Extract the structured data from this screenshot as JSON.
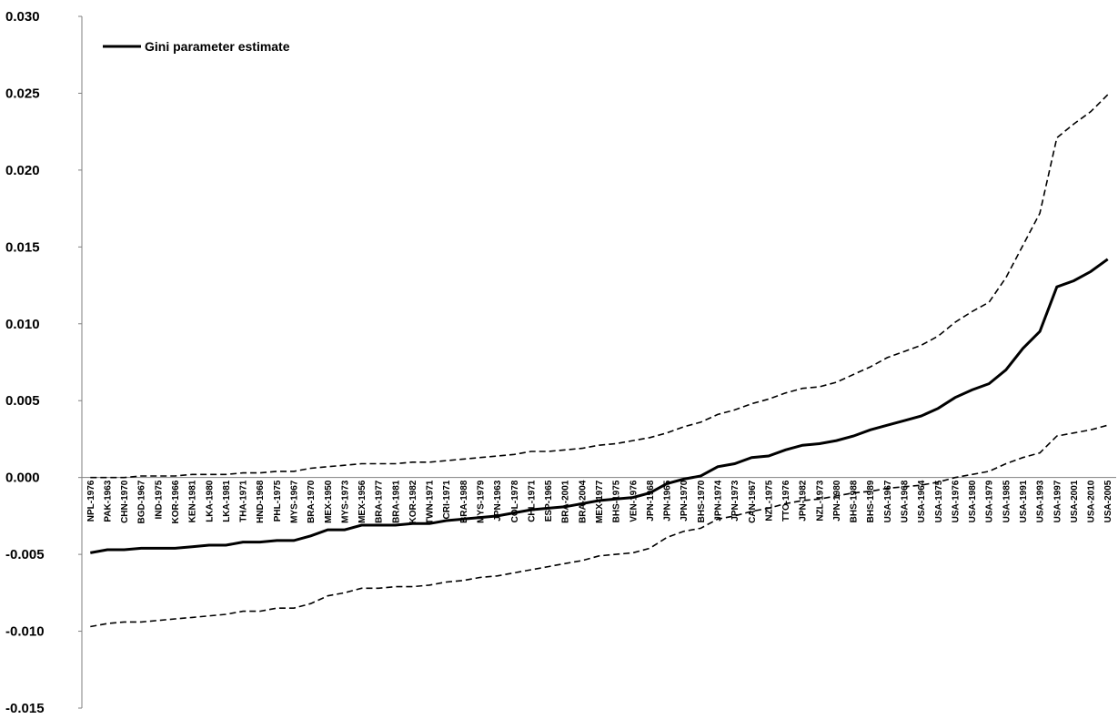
{
  "chart_data": {
    "type": "line",
    "title": "",
    "xlabel": "",
    "ylabel": "",
    "ylim": [
      -0.015,
      0.03
    ],
    "y_ticks": [
      "0.030",
      "0.025",
      "0.020",
      "0.015",
      "0.010",
      "0.005",
      "0.000",
      "-0.005",
      "-0.010",
      "-0.015"
    ],
    "grid": false,
    "legend_position": "top-left",
    "x_labels": [
      "NPL-1976",
      "PAK-1963",
      "CHN-1970",
      "BGD-1967",
      "IND-1975",
      "KOR-1966",
      "KEN-1981",
      "LKA-1980",
      "LKA-1981",
      "THA-1971",
      "HND-1968",
      "PHL-1975",
      "MYS-1967",
      "BRA-1970",
      "MEX-1950",
      "MYS-1973",
      "MEX-1956",
      "BRA-1977",
      "BRA-1981",
      "KOR-1982",
      "TWN-1971",
      "CRI-1971",
      "BRA-1988",
      "MYS-1979",
      "JPN-1963",
      "COL-1978",
      "CHL-1971",
      "ESP-1965",
      "BRA-2001",
      "BRA-2004",
      "MEX-1977",
      "BHS-1975",
      "VEN-1976",
      "JPN-1968",
      "JPN-1965",
      "JPN-1970",
      "BHS-1970",
      "JPN-1974",
      "JPN-1973",
      "CAN-1967",
      "NZL-1975",
      "TTO-1976",
      "JPN-1982",
      "NZL-1973",
      "JPN-1980",
      "BHS-1988",
      "BHS-1989",
      "USA-1967",
      "USA-1968",
      "USA-1964",
      "USA-1975",
      "USA-1976",
      "USA-1980",
      "USA-1979",
      "USA-1985",
      "USA-1991",
      "USA-1993",
      "USA-1997",
      "USA-2001",
      "USA-2010",
      "USA-2005"
    ],
    "series": [
      {
        "name": "Gini parameter estimate",
        "style": "solid",
        "color": "#000000",
        "values": [
          -0.0049,
          -0.0047,
          -0.0047,
          -0.0046,
          -0.0046,
          -0.0046,
          -0.0045,
          -0.0044,
          -0.0044,
          -0.0042,
          -0.0042,
          -0.0041,
          -0.0041,
          -0.0038,
          -0.0034,
          -0.0034,
          -0.0031,
          -0.0031,
          -0.0031,
          -0.003,
          -0.003,
          -0.0028,
          -0.0027,
          -0.0026,
          -0.0025,
          -0.0023,
          -0.0021,
          -0.002,
          -0.0019,
          -0.0017,
          -0.0015,
          -0.0014,
          -0.0013,
          -0.001,
          -0.0004,
          -0.0001,
          0.0001,
          0.0007,
          0.0009,
          0.0013,
          0.0014,
          0.0018,
          0.0021,
          0.0022,
          0.0024,
          0.0027,
          0.0031,
          0.0034,
          0.0037,
          0.004,
          0.0045,
          0.0052,
          0.0057,
          0.0061,
          0.007,
          0.0084,
          0.0095,
          0.0124,
          0.0128,
          0.0134,
          0.0142
        ]
      },
      {
        "name": "",
        "style": "dashed",
        "color": "#000000",
        "values": [
          0.0,
          0.0,
          0.0,
          0.0001,
          0.0001,
          0.0001,
          0.0002,
          0.0002,
          0.0002,
          0.0003,
          0.0003,
          0.0004,
          0.0004,
          0.0006,
          0.0007,
          0.0008,
          0.0009,
          0.0009,
          0.0009,
          0.001,
          0.001,
          0.0011,
          0.0012,
          0.0013,
          0.0014,
          0.0015,
          0.0017,
          0.0017,
          0.0018,
          0.0019,
          0.0021,
          0.0022,
          0.0024,
          0.0026,
          0.0029,
          0.0033,
          0.0036,
          0.0041,
          0.0044,
          0.0048,
          0.0051,
          0.0055,
          0.0058,
          0.0059,
          0.0062,
          0.0067,
          0.0072,
          0.0078,
          0.0082,
          0.0086,
          0.0092,
          0.0101,
          0.0108,
          0.0114,
          0.013,
          0.0151,
          0.0172,
          0.0221,
          0.023,
          0.0238,
          0.0249
        ]
      },
      {
        "name": "",
        "style": "dashed",
        "color": "#000000",
        "values": [
          -0.0097,
          -0.0095,
          -0.0094,
          -0.0094,
          -0.0093,
          -0.0092,
          -0.0091,
          -0.009,
          -0.0089,
          -0.0087,
          -0.0087,
          -0.0085,
          -0.0085,
          -0.0082,
          -0.0077,
          -0.0075,
          -0.0072,
          -0.0072,
          -0.0071,
          -0.0071,
          -0.007,
          -0.0068,
          -0.0067,
          -0.0065,
          -0.0064,
          -0.0062,
          -0.006,
          -0.0058,
          -0.0056,
          -0.0054,
          -0.0051,
          -0.005,
          -0.0049,
          -0.0046,
          -0.0039,
          -0.0035,
          -0.0033,
          -0.0027,
          -0.0025,
          -0.0022,
          -0.002,
          -0.0017,
          -0.0015,
          -0.0014,
          -0.0012,
          -0.001,
          -0.0009,
          -0.0007,
          -0.0006,
          -0.0005,
          -0.0003,
          0.0,
          0.0002,
          0.0004,
          0.0009,
          0.0013,
          0.0016,
          0.0027,
          0.0029,
          0.0031,
          0.0034
        ]
      }
    ]
  }
}
